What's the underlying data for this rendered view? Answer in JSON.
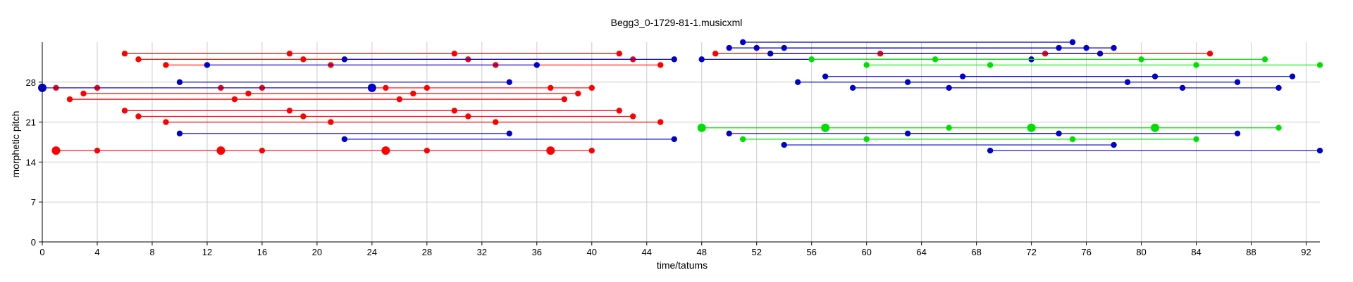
{
  "chart_data": {
    "type": "scatter",
    "title": "Begg3_0-1729-81-1.musicxml",
    "xlabel": "time/tatums",
    "ylabel": "morphetic pitch",
    "xlim": [
      0,
      93
    ],
    "ylim": [
      0,
      35
    ],
    "xticks": [
      0,
      4,
      8,
      12,
      16,
      20,
      24,
      28,
      32,
      36,
      40,
      44,
      48,
      52,
      56,
      60,
      64,
      68,
      72,
      76,
      80,
      84,
      88,
      92
    ],
    "yticks": [
      0,
      7,
      14,
      21,
      28
    ],
    "grid": true,
    "legend": "none",
    "colors": {
      "red": "#ff0000",
      "blue": "#0000cc",
      "green": "#00e000"
    },
    "series": [
      {
        "color": "red",
        "y": 16,
        "points": [
          1,
          4,
          13,
          16,
          25,
          28,
          37,
          40
        ],
        "large": [
          1,
          13,
          25,
          37
        ]
      },
      {
        "color": "red",
        "y": 33,
        "points": [
          6,
          18,
          30,
          42
        ]
      },
      {
        "color": "red",
        "y": 32,
        "points": [
          7,
          19,
          31,
          43
        ]
      },
      {
        "color": "red",
        "y": 31,
        "points": [
          9,
          21,
          33,
          45
        ]
      },
      {
        "color": "red",
        "y": 27,
        "points": [
          1,
          4,
          13,
          16,
          25,
          28,
          37,
          40
        ]
      },
      {
        "color": "red",
        "y": 26,
        "points": [
          3,
          15,
          27,
          39
        ]
      },
      {
        "color": "red",
        "y": 25,
        "points": [
          2,
          14,
          26,
          38
        ]
      },
      {
        "color": "red",
        "y": 23,
        "points": [
          6,
          18,
          30,
          42
        ]
      },
      {
        "color": "red",
        "y": 22,
        "points": [
          7,
          19,
          31,
          43
        ]
      },
      {
        "color": "red",
        "y": 21,
        "points": [
          9,
          21,
          33,
          45
        ]
      },
      {
        "color": "red",
        "y": 33,
        "points": [
          49,
          61,
          73,
          85
        ]
      },
      {
        "color": "blue",
        "y": 31,
        "points": [
          12,
          36
        ]
      },
      {
        "color": "blue",
        "y": 32,
        "points": [
          22,
          46
        ]
      },
      {
        "color": "blue",
        "y": 28,
        "points": [
          10,
          34
        ]
      },
      {
        "color": "blue",
        "y": 27,
        "points": [
          0,
          24
        ],
        "large": [
          0,
          24
        ]
      },
      {
        "color": "blue",
        "y": 19,
        "points": [
          10,
          34
        ]
      },
      {
        "color": "blue",
        "y": 18,
        "points": [
          22,
          46
        ]
      },
      {
        "color": "blue",
        "y": 35,
        "points": [
          51,
          75
        ]
      },
      {
        "color": "blue",
        "y": 34,
        "points": [
          50,
          74
        ]
      },
      {
        "color": "blue",
        "y": 34,
        "points": [
          52,
          76
        ]
      },
      {
        "color": "blue",
        "y": 34,
        "points": [
          54,
          78
        ]
      },
      {
        "color": "blue",
        "y": 33,
        "points": [
          53,
          77
        ]
      },
      {
        "color": "blue",
        "y": 32,
        "points": [
          48,
          72
        ]
      },
      {
        "color": "blue",
        "y": 29,
        "points": [
          57,
          81
        ]
      },
      {
        "color": "blue",
        "y": 29,
        "points": [
          67,
          91
        ]
      },
      {
        "color": "blue",
        "y": 28,
        "points": [
          55,
          79
        ]
      },
      {
        "color": "blue",
        "y": 28,
        "points": [
          63,
          87
        ]
      },
      {
        "color": "blue",
        "y": 27,
        "points": [
          59,
          83
        ]
      },
      {
        "color": "blue",
        "y": 27,
        "points": [
          66,
          90
        ]
      },
      {
        "color": "blue",
        "y": 19,
        "points": [
          50,
          74
        ]
      },
      {
        "color": "blue",
        "y": 19,
        "points": [
          63,
          87
        ]
      },
      {
        "color": "blue",
        "y": 17,
        "points": [
          54,
          78
        ]
      },
      {
        "color": "blue",
        "y": 16,
        "points": [
          69,
          93
        ]
      },
      {
        "color": "green",
        "y": 32,
        "points": [
          56,
          65,
          80,
          89
        ]
      },
      {
        "color": "green",
        "y": 31,
        "points": [
          60,
          69,
          84,
          93
        ]
      },
      {
        "color": "green",
        "y": 20,
        "points": [
          48,
          57,
          66,
          72,
          81,
          90
        ],
        "large": [
          48,
          57,
          72,
          81
        ]
      },
      {
        "color": "green",
        "y": 18,
        "points": [
          51,
          60,
          75,
          84
        ]
      }
    ]
  }
}
